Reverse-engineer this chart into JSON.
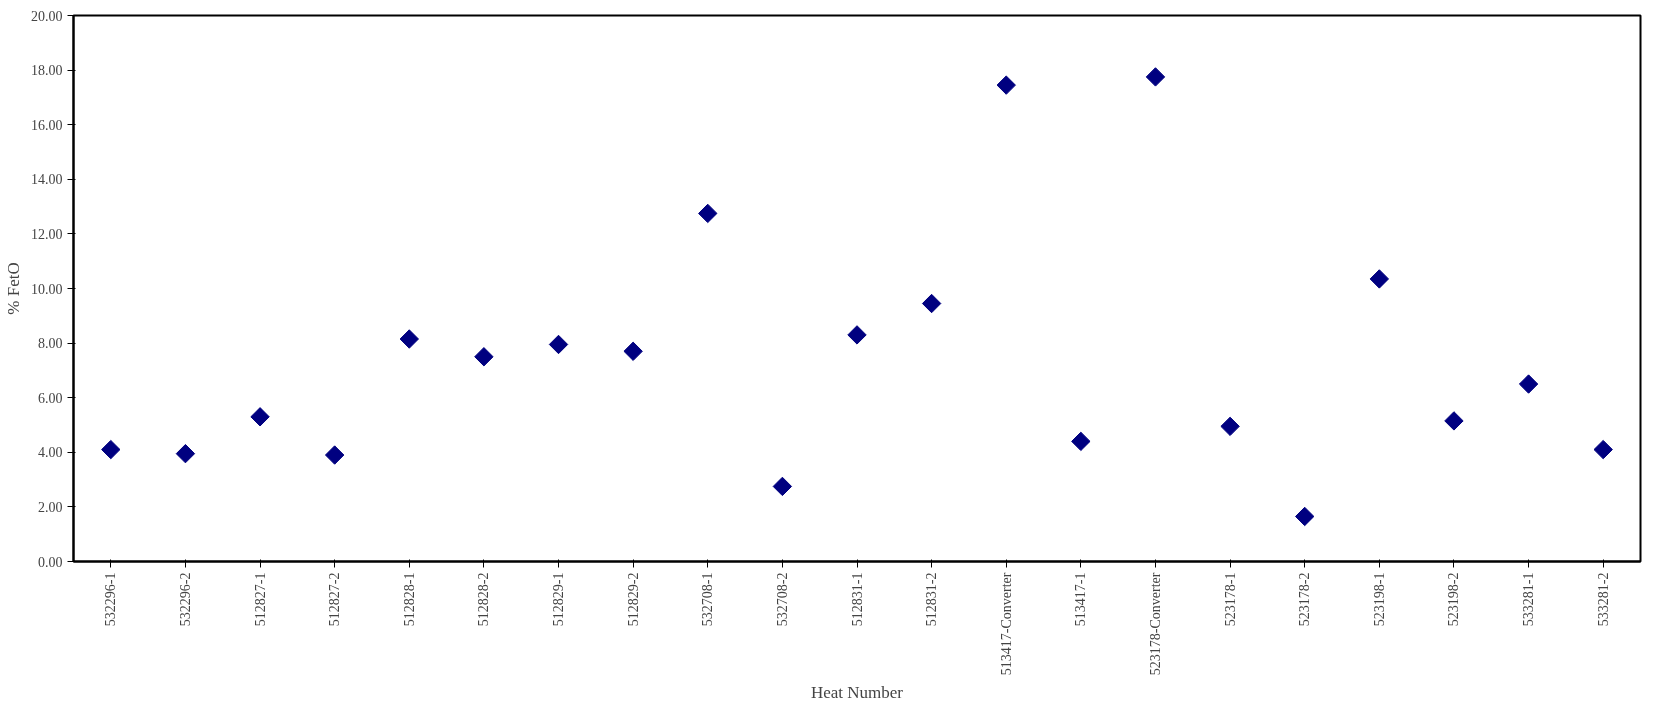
{
  "chart_data": {
    "type": "scatter",
    "xlabel": "Heat Number",
    "ylabel": "% FetO",
    "categories": [
      "532296-1",
      "532296-2",
      "512827-1",
      "512827-2",
      "512828-1",
      "512828-2",
      "512829-1",
      "512829-2",
      "532708-1",
      "532708-2",
      "512831-1",
      "512831-2",
      "513417-Converter",
      "513417-1",
      "523178-Converter",
      "523178-1",
      "523178-2",
      "523198-1",
      "523198-2",
      "533281-1",
      "533281-2"
    ],
    "series": [
      {
        "color": "#000080",
        "values": [
          4.1,
          3.95,
          5.3,
          3.9,
          8.15,
          7.5,
          7.95,
          7.7,
          12.75,
          2.75,
          8.3,
          9.45,
          17.45,
          4.4,
          17.75,
          4.95,
          1.65,
          10.35,
          5.15,
          6.5,
          4.1
        ]
      }
    ],
    "ylim": [
      0,
      20
    ],
    "yticks": [
      {
        "value": 0,
        "label": "0.00"
      },
      {
        "value": 2,
        "label": "2.00"
      },
      {
        "value": 4,
        "label": "4.00"
      },
      {
        "value": 6,
        "label": "6.00"
      },
      {
        "value": 8,
        "label": "8.00"
      },
      {
        "value": 10,
        "label": "10.00"
      },
      {
        "value": 12,
        "label": "12.00"
      },
      {
        "value": 14,
        "label": "14.00"
      },
      {
        "value": 16,
        "label": "16.00"
      },
      {
        "value": 18,
        "label": "18.00"
      },
      {
        "value": 20,
        "label": "20.00"
      }
    ],
    "marker": "diamond",
    "grid": false
  }
}
